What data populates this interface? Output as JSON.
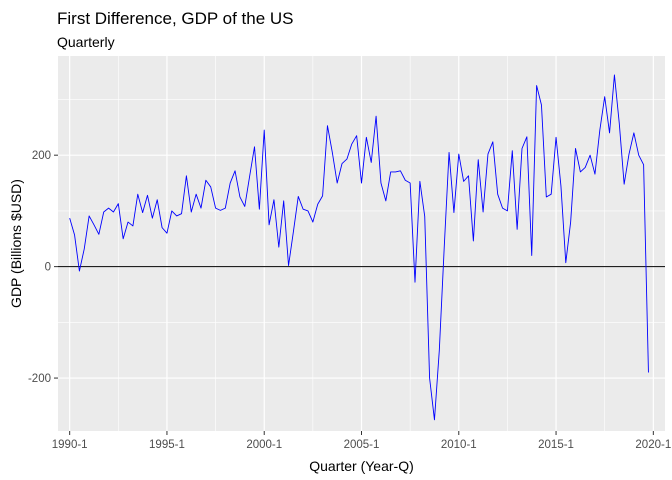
{
  "chart_data": {
    "type": "line",
    "title": "First Difference, GDP of the US",
    "subtitle": "Quarterly",
    "xlabel": "Quarter (Year-Q)",
    "ylabel": "GDP (Billions $USD)",
    "xlim": [
      1989.4,
      2020.6
    ],
    "ylim": [
      -295,
      378
    ],
    "x_ticks": [
      1990,
      1995,
      2000,
      2005,
      2010,
      2015,
      2020
    ],
    "x_tick_labels": [
      "1990-1",
      "1995-1",
      "2000-1",
      "2005-1",
      "2010-1",
      "2015-1",
      "2020-1"
    ],
    "y_ticks": [
      -200,
      0,
      200
    ],
    "y_tick_labels": [
      "-200",
      "0",
      "200"
    ],
    "grid": true,
    "reference_line_y": 0,
    "colors": {
      "line": "#0000ff",
      "panel": "#ebebeb",
      "grid": "#ffffff",
      "reference": "#000000"
    },
    "start_quarter": "1990-1",
    "values": [
      87,
      57,
      -8,
      32,
      91,
      75,
      58,
      98,
      105,
      98,
      113,
      50,
      80,
      73,
      130,
      97,
      128,
      87,
      120,
      70,
      60,
      100,
      91,
      95,
      163,
      98,
      130,
      105,
      155,
      143,
      105,
      101,
      105,
      150,
      172,
      125,
      108,
      162,
      215,
      103,
      245,
      75,
      120,
      35,
      118,
      2,
      63,
      126,
      103,
      100,
      80,
      112,
      127,
      253,
      205,
      150,
      185,
      193,
      220,
      235,
      150,
      232,
      187,
      270,
      150,
      118,
      170,
      170,
      172,
      155,
      150,
      -28,
      153,
      90,
      -200,
      -275,
      -150,
      33,
      205,
      97,
      202,
      153,
      163,
      46,
      192,
      98,
      202,
      224,
      130,
      105,
      100,
      208,
      67,
      212,
      233,
      20,
      325,
      290,
      125,
      130,
      232,
      145,
      7,
      80,
      212,
      170,
      178,
      200,
      166,
      245,
      305,
      240,
      344,
      257,
      148,
      202,
      240,
      200,
      183,
      -190
    ]
  }
}
